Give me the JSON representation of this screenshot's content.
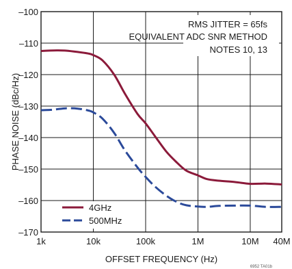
{
  "chart_data": {
    "type": "line",
    "xlabel": "OFFSET FREQUENCY (Hz)",
    "ylabel": "PHASE NOISE (dBc/Hz)",
    "x_scale": "log",
    "xlim": [
      1000,
      40000000
    ],
    "ylim": [
      -170,
      -100
    ],
    "x_ticks": [
      {
        "value": 1000,
        "label": "1k"
      },
      {
        "value": 10000,
        "label": "10k"
      },
      {
        "value": 100000,
        "label": "100k"
      },
      {
        "value": 1000000,
        "label": "1M"
      },
      {
        "value": 10000000,
        "label": "10M"
      },
      {
        "value": 40000000,
        "label": "40M"
      }
    ],
    "y_ticks": [
      {
        "value": -100,
        "label": "–100"
      },
      {
        "value": -110,
        "label": "–110"
      },
      {
        "value": -120,
        "label": "–120"
      },
      {
        "value": -130,
        "label": "–130"
      },
      {
        "value": -140,
        "label": "–140"
      },
      {
        "value": -150,
        "label": "–150"
      },
      {
        "value": -160,
        "label": "–160"
      },
      {
        "value": -170,
        "label": "–170"
      }
    ],
    "grid": true,
    "annotations": [
      "RMS JITTER = 65fs",
      "EQUIVALENT ADC SNR METHOD",
      "NOTES 10, 13"
    ],
    "figure_code": "6952 TA01b",
    "legend_position": "bottom-left",
    "series": [
      {
        "name": "4GHz",
        "color": "#8b1a3a",
        "style": "solid",
        "x": [
          1000,
          2000,
          3000,
          5000,
          8000,
          10000,
          15000,
          25000,
          40000,
          70000,
          100000,
          150000,
          250000,
          400000,
          600000,
          1000000,
          1500000,
          2500000,
          5000000,
          10000000,
          20000000,
          40000000
        ],
        "y": [
          -112.5,
          -112.3,
          -112.4,
          -112.8,
          -113.3,
          -113.8,
          -115.5,
          -120,
          -126,
          -132.5,
          -135.5,
          -139.5,
          -144.5,
          -148,
          -150.5,
          -152,
          -153.2,
          -153.7,
          -154.1,
          -154.7,
          -154.6,
          -154.9
        ]
      },
      {
        "name": "500MHz",
        "color": "#2b4a9a",
        "style": "dashed",
        "x": [
          1000,
          1500,
          2000,
          3000,
          5000,
          8000,
          10000,
          15000,
          25000,
          40000,
          70000,
          100000,
          150000,
          250000,
          400000,
          600000,
          1000000,
          1500000,
          2500000,
          5000000,
          10000000,
          20000000,
          40000000
        ],
        "y": [
          -131.3,
          -131.2,
          -131,
          -130.7,
          -130.8,
          -131.4,
          -132,
          -134,
          -138.5,
          -144,
          -149.5,
          -152.5,
          -155.5,
          -158.5,
          -160.5,
          -161.5,
          -161.9,
          -162,
          -161.7,
          -161.6,
          -161.6,
          -162,
          -162
        ]
      }
    ]
  }
}
